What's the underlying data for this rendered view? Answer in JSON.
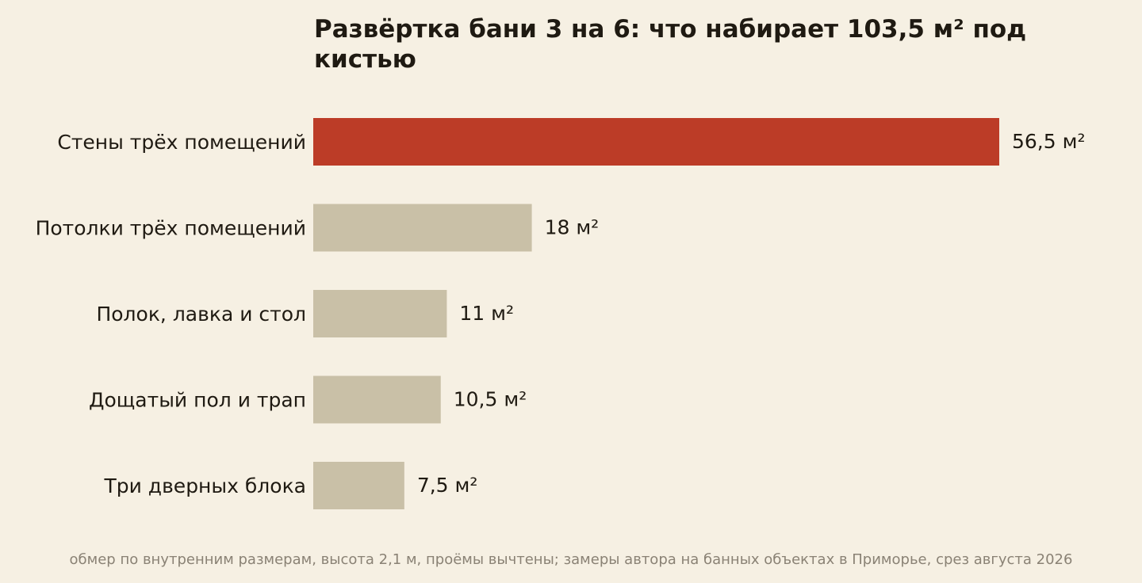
{
  "chart_data": {
    "type": "bar",
    "orientation": "horizontal",
    "title": "Развёртка бани 3 на 6: что набирает 103,5 м² под кистью",
    "categories": [
      "Стены трёх помещений",
      "Потолки трёх помещений",
      "Полок, лавка и стол",
      "Дощатый пол и трап",
      "Три дверных блока"
    ],
    "values": [
      56.5,
      18,
      11,
      10.5,
      7.5
    ],
    "value_labels": [
      "56,5 м²",
      "18 м²",
      "11 м²",
      "10,5 м²",
      "7,5 м²"
    ],
    "xlim": [
      0,
      56.5
    ],
    "grid": false,
    "legend": "none",
    "highlight_color": "#bc3c27",
    "bar_color": "#c9c0a7"
  },
  "source_note": "обмер по внутренним размерам, высота 2,1 м, проёмы вычтены; замеры автора на банных объектах в Приморье, срез августа 2026"
}
